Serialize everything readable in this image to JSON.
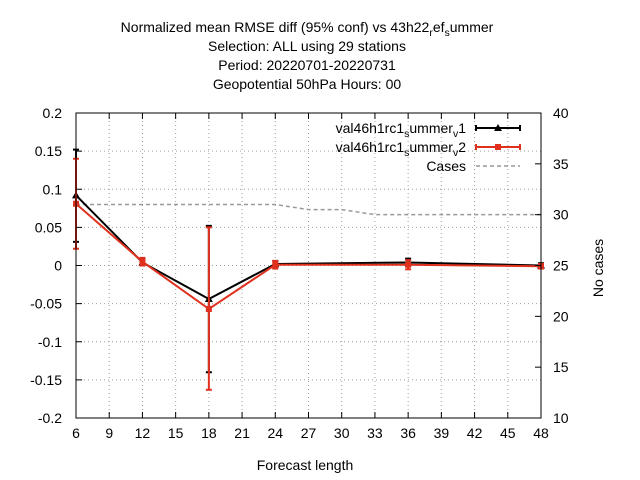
{
  "chart_data": {
    "type": "line",
    "title_lines": [
      "Normalized mean RMSE diff (95% conf) vs 43h22_ref_summer",
      "Selection: ALL using    29 stations",
      "Period: 20220701-20220731",
      "Geopotential 50hPa   Hours:  00"
    ],
    "xlabel": "Forecast length",
    "ylabel": "",
    "y2label": "No cases",
    "xlim": [
      6,
      48
    ],
    "ylim": [
      -0.2,
      0.2
    ],
    "y2lim": [
      10,
      40
    ],
    "xticks": [
      6,
      9,
      12,
      15,
      18,
      21,
      24,
      27,
      30,
      33,
      36,
      39,
      42,
      45,
      48
    ],
    "yticks": [
      -0.2,
      -0.15,
      -0.1,
      -0.05,
      0,
      0.05,
      0.1,
      0.15,
      0.2
    ],
    "y2ticks": [
      10,
      15,
      20,
      25,
      30,
      35,
      40
    ],
    "grid": true,
    "legend_position": "top-right",
    "series": [
      {
        "name": "val46h1rc1_summer_v1",
        "color": "#000000",
        "marker": "triangle",
        "x": [
          6,
          12,
          18,
          24,
          36,
          48
        ],
        "y": [
          0.092,
          0.004,
          -0.044,
          0.002,
          0.004,
          0.0
        ],
        "err_low": [
          0.031,
          0.0,
          -0.14,
          -0.003,
          -0.001,
          -0.003
        ],
        "err_high": [
          0.152,
          0.008,
          0.052,
          0.006,
          0.009,
          0.003
        ]
      },
      {
        "name": "val46h1rc1_summer_v2",
        "color": "#e0301e",
        "marker": "square",
        "x": [
          6,
          12,
          18,
          24,
          36,
          48
        ],
        "y": [
          0.081,
          0.005,
          -0.057,
          0.001,
          0.001,
          -0.001
        ],
        "err_low": [
          0.022,
          0.0,
          -0.163,
          -0.004,
          -0.005,
          -0.004
        ],
        "err_high": [
          0.14,
          0.01,
          0.05,
          0.006,
          0.007,
          0.002
        ]
      },
      {
        "name": "Cases",
        "color": "#999999",
        "style": "dashed",
        "axis": "y2",
        "x": [
          6,
          9,
          12,
          15,
          18,
          21,
          24,
          27,
          30,
          33,
          36,
          39,
          42,
          45,
          48
        ],
        "y": [
          31,
          31,
          31,
          31,
          31,
          31,
          31,
          30.5,
          30.5,
          30,
          30,
          30,
          30,
          30,
          30
        ]
      }
    ]
  }
}
